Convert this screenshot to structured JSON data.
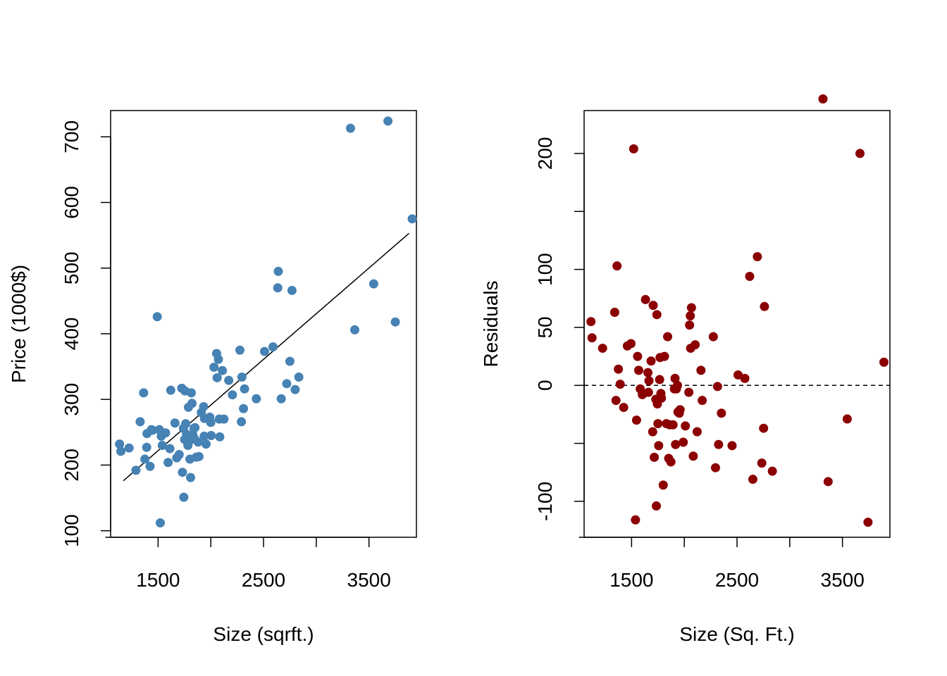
{
  "chart_data": [
    {
      "type": "scatter",
      "xlabel": "Size (sqrft.)",
      "ylabel": "Price (1000$)",
      "xlim": [
        1050,
        3950
      ],
      "ylim": [
        90,
        740
      ],
      "xticks": [
        1000,
        1500,
        2000,
        2500,
        3000,
        3500
      ],
      "xtick_labels": [
        "1500",
        "2500",
        "3500"
      ],
      "xtick_labeled_values": [
        1500,
        2500,
        3500
      ],
      "yticks": [
        100,
        200,
        300,
        400,
        500,
        600,
        700
      ],
      "ytick_labels": [
        "100",
        "200",
        "300",
        "400",
        "500",
        "600",
        "700"
      ],
      "grid": false,
      "point_color": "#4682B4",
      "line_color": "#000000",
      "regression_line": {
        "x": [
          1170,
          3880
        ],
        "y": [
          176,
          553
        ]
      },
      "series": [
        {
          "x": [
            1135,
            1147,
            1225,
            1290,
            1330,
            1363,
            1375,
            1392,
            1395,
            1424,
            1437,
            1448,
            1492,
            1512,
            1521,
            1530,
            1540,
            1571,
            1595,
            1612,
            1620,
            1660,
            1677,
            1700,
            1725,
            1731,
            1740,
            1744,
            1752,
            1755,
            1762,
            1770,
            1783,
            1788,
            1800,
            1802,
            1808,
            1815,
            1822,
            1830,
            1840,
            1846,
            1850,
            1862,
            1880,
            1888,
            1910,
            1932,
            1937,
            1940,
            1955,
            1990,
            2000,
            2003,
            2030,
            2055,
            2060,
            2072,
            2080,
            2085,
            2110,
            2125,
            2170,
            2205,
            2276,
            2290,
            2295,
            2310,
            2320,
            2432,
            2510,
            2590,
            2635,
            2640,
            2668,
            2720,
            2750,
            2770,
            2800,
            2835,
            3325,
            3365,
            3545,
            3680,
            3750,
            3910
          ],
          "y": [
            232,
            221,
            226,
            192,
            266,
            310,
            209,
            227,
            248,
            198,
            254,
            253,
            426,
            254,
            112,
            244,
            230,
            249,
            204,
            225,
            314,
            264,
            211,
            216,
            317,
            189,
            256,
            151,
            239,
            313,
            263,
            247,
            230,
            288,
            237,
            209,
            181,
            310,
            294,
            246,
            256,
            240,
            257,
            212,
            235,
            213,
            280,
            289,
            244,
            271,
            232,
            273,
            265,
            245,
            349,
            370,
            333,
            361,
            270,
            243,
            344,
            270,
            329,
            307,
            375,
            266,
            334,
            286,
            316,
            301,
            373,
            380,
            470,
            495,
            301,
            324,
            358,
            466,
            315,
            334,
            713,
            406,
            476,
            724,
            418,
            575
          ]
        }
      ]
    },
    {
      "type": "scatter",
      "xlabel": "Size (Sq. Ft.)",
      "ylabel": "Residuals",
      "xlim": [
        1050,
        3950
      ],
      "ylim": [
        -131,
        237
      ],
      "xticks": [
        1000,
        1500,
        2000,
        2500,
        3000,
        3500
      ],
      "xtick_labels": [
        "1500",
        "2500",
        "3500"
      ],
      "xtick_labeled_values": [
        1500,
        2500,
        3500
      ],
      "yticks": [
        -100,
        -50,
        0,
        50,
        100,
        150,
        200
      ],
      "ytick_labels": [
        "-100",
        "",
        "0",
        "50",
        "100",
        "",
        "200"
      ],
      "grid": false,
      "point_color": "#8B0000",
      "reference_line": {
        "y": 0,
        "style": "dashed",
        "color": "#000000"
      },
      "series": [
        {
          "x": [
            1115,
            1125,
            1225,
            1340,
            1352,
            1362,
            1375,
            1392,
            1425,
            1460,
            1494,
            1520,
            1537,
            1547,
            1557,
            1568,
            1582,
            1602,
            1632,
            1655,
            1660,
            1665,
            1685,
            1700,
            1705,
            1715,
            1730,
            1735,
            1740,
            1745,
            1750,
            1755,
            1757,
            1766,
            1770,
            1778,
            1783,
            1800,
            1812,
            1830,
            1842,
            1852,
            1862,
            1873,
            1893,
            1906,
            1912,
            1917,
            1925,
            1935,
            1940,
            1953,
            1960,
            1990,
            2010,
            2043,
            2050,
            2057,
            2060,
            2068,
            2085,
            2103,
            2122,
            2158,
            2170,
            2275,
            2296,
            2315,
            2325,
            2352,
            2453,
            2510,
            2574,
            2620,
            2650,
            2693,
            2735,
            2752,
            2760,
            2835,
            3315,
            3364,
            3545,
            3666,
            3742,
            3893
          ],
          "y": [
            55,
            41,
            32,
            63,
            -13,
            103,
            14,
            1,
            -19,
            34,
            36,
            204,
            -116,
            -30,
            25,
            13,
            -3,
            -8,
            74,
            11,
            -6,
            4,
            21,
            -40,
            69,
            -62,
            -12,
            -104,
            61,
            -16,
            -33,
            -12,
            -52,
            5,
            24,
            -7,
            -11,
            -86,
            25,
            -33,
            42,
            -63,
            -34,
            -66,
            -34,
            -3,
            6,
            -51,
            -3,
            0,
            -23,
            -24,
            -21,
            -49,
            -35,
            -6,
            52,
            60,
            32,
            67,
            -61,
            35,
            -40,
            13,
            -13,
            42,
            -71,
            -1,
            -51,
            -24,
            -52,
            9,
            6,
            94,
            -81,
            111,
            -67,
            -37,
            68,
            -74,
            247,
            -83,
            -29,
            200,
            -118,
            20
          ]
        }
      ]
    }
  ]
}
